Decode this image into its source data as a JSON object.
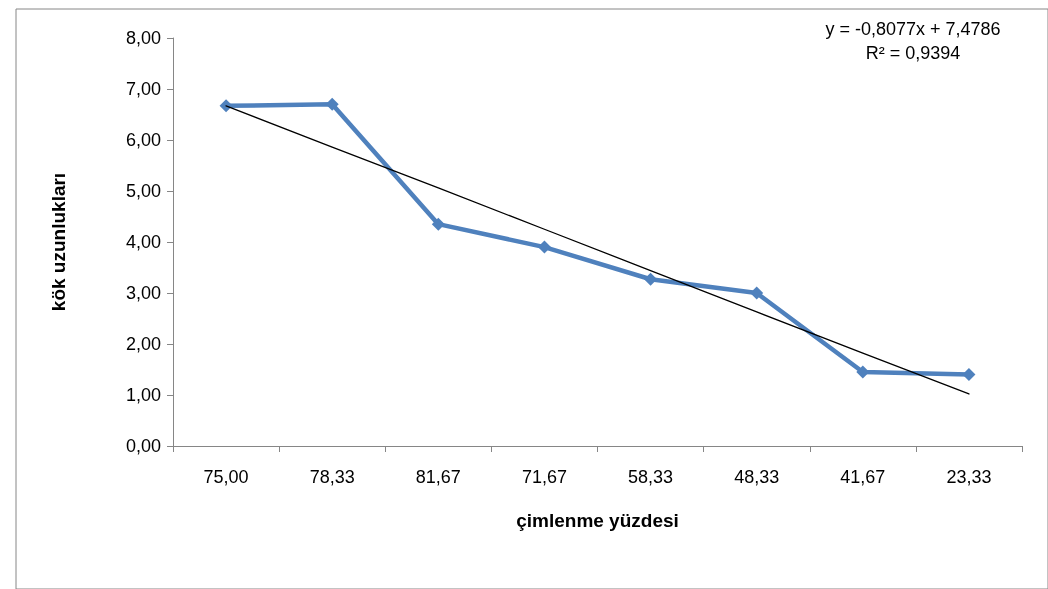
{
  "chart_data": {
    "type": "line",
    "xlabel": "çimlenme yüzdesi",
    "ylabel": "kök uzunlukları",
    "categories": [
      "75,00",
      "78,33",
      "81,67",
      "71,67",
      "58,33",
      "48,33",
      "41,67",
      "23,33"
    ],
    "series": [
      {
        "color": "#4f81bd",
        "values": [
          6.67,
          6.7,
          4.35,
          3.9,
          3.27,
          3.0,
          1.45,
          1.4
        ],
        "marker": "diamond"
      },
      {
        "type": "line",
        "color": "#000000",
        "values": [
          6.67,
          5.86,
          5.06,
          4.25,
          3.44,
          2.63,
          1.82,
          1.02
        ],
        "marker": "none"
      }
    ],
    "ylim": [
      0,
      8
    ],
    "yticks": [
      {
        "value": 0,
        "label": "0,00"
      },
      {
        "value": 1,
        "label": "1,00"
      },
      {
        "value": 2,
        "label": "2,00"
      },
      {
        "value": 3,
        "label": "3,00"
      },
      {
        "value": 4,
        "label": "4,00"
      },
      {
        "value": 5,
        "label": "5,00"
      },
      {
        "value": 6,
        "label": "6,00"
      },
      {
        "value": 7,
        "label": "7,00"
      },
      {
        "value": 8,
        "label": "8,00"
      }
    ],
    "annotations": [
      "y = -0,8077x + 7,4786",
      "R² = 0,9394"
    ],
    "grid": false
  }
}
